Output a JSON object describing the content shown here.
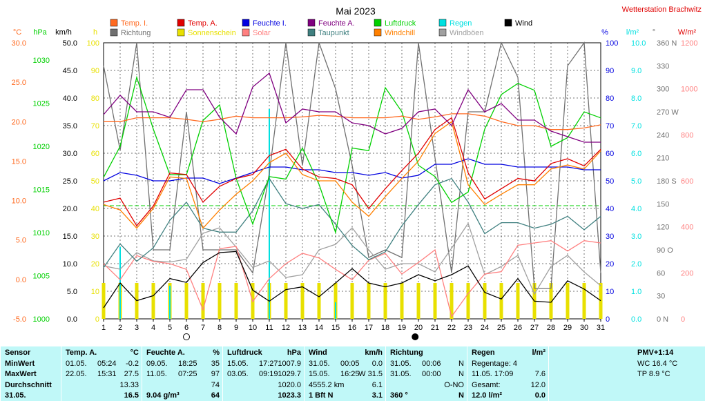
{
  "title": "Mai 2023",
  "station": "Wetterstation Brachwitz",
  "units": {
    "c": "°C",
    "hpa": "hPa",
    "kmh": "km/h",
    "h": "h",
    "pct": "%",
    "lm2": "l/m²",
    "deg": "°",
    "wm2": "W/m²"
  },
  "legend": [
    {
      "label": "Temp. I.",
      "color": "#ff6a20"
    },
    {
      "label": "Richtung",
      "color": "#707070"
    },
    {
      "label": "Temp. A.",
      "color": "#e00000"
    },
    {
      "label": "Sonnenschein",
      "color": "#e8e000"
    },
    {
      "label": "Feuchte I.",
      "color": "#0000e0"
    },
    {
      "label": "Solar",
      "color": "#ff8080"
    },
    {
      "label": "Feuchte A.",
      "color": "#800080"
    },
    {
      "label": "Taupunkt",
      "color": "#408080"
    },
    {
      "label": "Luftdruck",
      "color": "#00d000"
    },
    {
      "label": "Windchill",
      "color": "#ff8000"
    },
    {
      "label": "Regen",
      "color": "#00e0e0"
    },
    {
      "label": "Windböen",
      "color": "#a0a0a0"
    },
    {
      "label": "Wind",
      "color": "#000000"
    }
  ],
  "chart_data": {
    "type": "line",
    "title": "Mai 2023",
    "x": [
      1,
      2,
      3,
      4,
      5,
      6,
      7,
      8,
      9,
      10,
      11,
      12,
      13,
      14,
      15,
      16,
      17,
      18,
      19,
      20,
      21,
      22,
      23,
      24,
      25,
      26,
      27,
      28,
      29,
      30,
      31
    ],
    "axes": {
      "temp_c": {
        "range": [
          -5,
          30
        ],
        "ticks": [
          "30.0",
          "25.0",
          "20.0",
          "15.0",
          "10.0",
          "5.0",
          "0.0",
          "-5.0"
        ]
      },
      "pressure_hpa": {
        "range": [
          1000,
          1032
        ],
        "ticks": [
          "1030",
          "1025",
          "1020",
          "1015",
          "1010",
          "1005",
          "1000"
        ]
      },
      "wind_kmh": {
        "range": [
          0,
          50
        ],
        "ticks": [
          "50.0",
          "45.0",
          "40.0",
          "35.0",
          "30.0",
          "25.0",
          "20.0",
          "15.0",
          "10.0",
          "5.0",
          "0.0"
        ]
      },
      "sun_h": {
        "range": [
          0,
          100
        ],
        "ticks": [
          "100",
          "90",
          "80",
          "70",
          "60",
          "50",
          "40",
          "30",
          "20",
          "10",
          "0"
        ]
      },
      "humidity_pct": {
        "range": [
          0,
          100
        ],
        "ticks": [
          "100",
          "90",
          "80",
          "70",
          "60",
          "50",
          "40",
          "30",
          "20",
          "10",
          "0"
        ]
      },
      "rain_lm2": {
        "range": [
          0,
          10
        ],
        "ticks": [
          "10.0",
          "9.0",
          "8.0",
          "7.0",
          "6.0",
          "5.0",
          "4.0",
          "3.0",
          "2.0",
          "1.0",
          "0.0"
        ]
      },
      "direction_deg": {
        "range": [
          0,
          360
        ],
        "ticks": [
          "360 N",
          "330",
          "300",
          "270 W",
          "240",
          "210",
          "180 S",
          "150",
          "120",
          "90 O",
          "60",
          "30",
          "0 N"
        ]
      },
      "solar_wm2": {
        "range": [
          0,
          1200
        ],
        "ticks": [
          "1200",
          "1000",
          "800",
          "600",
          "400",
          "200",
          "0"
        ]
      }
    },
    "series": [
      {
        "name": "Temp. I.",
        "axis": "temp_c",
        "color": "#ff6a20",
        "values": [
          20.0,
          20.0,
          20.5,
          20.5,
          20.5,
          20.3,
          20.0,
          20.3,
          20.7,
          20.5,
          20.5,
          20.5,
          20.6,
          20.8,
          20.7,
          20.5,
          20.5,
          20.5,
          20.7,
          20.3,
          20.6,
          21.0,
          21.0,
          20.7,
          20.0,
          19.5,
          19.5,
          19.0,
          19.0,
          19.2,
          19.6
        ]
      },
      {
        "name": "Temp. A.",
        "axis": "temp_c",
        "color": "#e00000",
        "values": [
          9.8,
          10.3,
          6.8,
          9.3,
          13.5,
          13.3,
          9.8,
          11.8,
          12.8,
          13.3,
          15.7,
          16.5,
          14.0,
          13.0,
          12.8,
          12.0,
          9.0,
          11.5,
          13.8,
          16.0,
          19.0,
          20.5,
          13.5,
          10.2,
          11.5,
          12.8,
          12.5,
          14.7,
          15.3,
          14.4,
          16.5
        ]
      },
      {
        "name": "Windchill",
        "axis": "temp_c",
        "color": "#ff8000",
        "values": [
          9.5,
          8.8,
          6.5,
          9.0,
          13.0,
          12.8,
          6.5,
          8.8,
          10.8,
          12.5,
          14.8,
          16.0,
          13.3,
          12.5,
          12.5,
          9.8,
          8.0,
          10.5,
          12.8,
          15.0,
          18.5,
          20.0,
          12.0,
          9.5,
          10.8,
          12.0,
          12.0,
          14.0,
          14.5,
          14.0,
          16.3
        ]
      },
      {
        "name": "Taupunkt",
        "axis": "temp_c",
        "color": "#408080",
        "values": [
          1.5,
          4.5,
          2.3,
          4.0,
          7.5,
          9.8,
          6.5,
          6.0,
          6.0,
          8.7,
          12.8,
          9.6,
          9.0,
          9.5,
          7.0,
          4.3,
          2.5,
          3.5,
          6.8,
          9.5,
          12.0,
          12.8,
          9.8,
          5.8,
          7.2,
          7.2,
          6.5,
          7.0,
          8.0,
          6.3,
          8.0
        ]
      },
      {
        "name": "Feuchte I.",
        "axis": "humidity_pct",
        "color": "#0000e0",
        "values": [
          50,
          53,
          52,
          50,
          50,
          51,
          51,
          49,
          51,
          53,
          55,
          55,
          54,
          54,
          53,
          53,
          52,
          53,
          51,
          52,
          56,
          56,
          58,
          56,
          56,
          55,
          55,
          55,
          55,
          54,
          54
        ]
      },
      {
        "name": "Feuchte A.",
        "axis": "humidity_pct",
        "color": "#800080",
        "values": [
          74,
          81,
          75,
          75,
          73,
          83,
          83,
          73,
          67,
          84,
          89,
          71,
          76,
          75,
          75,
          71,
          70,
          67,
          69,
          75,
          76,
          70,
          83,
          75,
          78,
          72,
          72,
          68,
          66,
          64,
          64
        ]
      },
      {
        "name": "Luftdruck",
        "axis": "pressure_hpa",
        "color": "#00d000",
        "values": [
          1016.4,
          1020.0,
          1028.0,
          1022.0,
          1016.7,
          1016.7,
          1023.0,
          1024.8,
          1016.3,
          1011.0,
          1016.5,
          1016.2,
          1019.8,
          1015.6,
          1010.0,
          1019.8,
          1019.5,
          1026.8,
          1024.0,
          1017.8,
          1016.5,
          1013.5,
          1014.7,
          1022.0,
          1026.0,
          1027.3,
          1026.5,
          1020.0,
          1021.0,
          1024.0,
          1023.3
        ]
      },
      {
        "name": "Wind",
        "axis": "wind_kmh",
        "color": "#000000",
        "values": [
          2.0,
          6.5,
          3.3,
          4.2,
          7.3,
          6.6,
          10.2,
          12.0,
          12.2,
          5.2,
          3.2,
          5.3,
          5.8,
          4.0,
          6.5,
          9.1,
          6.5,
          5.8,
          6.5,
          8.0,
          6.9,
          8.0,
          9.6,
          4.8,
          3.6,
          7.3,
          3.2,
          3.0,
          6.9,
          5.4,
          3.3
        ]
      },
      {
        "name": "Windböen",
        "axis": "wind_kmh",
        "color": "#a0a0a0",
        "values": [
          9.6,
          9.0,
          12.0,
          10.5,
          10.3,
          10.8,
          15.5,
          16.5,
          13.0,
          9.3,
          10.5,
          7.5,
          8.0,
          12.5,
          13.5,
          16.5,
          12.5,
          9.0,
          10.0,
          10.0,
          8.5,
          12.8,
          17.3,
          8.0,
          9.5,
          11.5,
          4.5,
          9.5,
          11.5,
          8.5,
          6.0
        ]
      },
      {
        "name": "Solar",
        "axis": "solar_wm2",
        "color": "#ff8080",
        "values": [
          240,
          170,
          275,
          250,
          240,
          215,
          40,
          305,
          315,
          75,
          175,
          240,
          285,
          265,
          215,
          170,
          255,
          285,
          195,
          245,
          300,
          10,
          110,
          195,
          205,
          320,
          330,
          340,
          295,
          340,
          330
        ]
      },
      {
        "name": "Richtung",
        "axis": "direction_deg",
        "color": "#707070",
        "values": [
          330,
          220,
          360,
          90,
          90,
          270,
          90,
          90,
          90,
          60,
          190,
          360,
          200,
          360,
          300,
          200,
          80,
          90,
          80,
          360,
          210,
          60,
          270,
          270,
          360,
          315,
          40,
          40,
          330,
          360,
          60
        ]
      },
      {
        "name": "Sonnenschein",
        "axis": "sun_h",
        "color": "#e8e000",
        "type": "bar",
        "values": [
          13,
          13,
          13,
          13,
          13,
          13,
          13,
          13,
          13,
          13,
          13,
          13,
          13,
          13,
          13,
          13,
          13,
          13,
          13,
          13,
          13,
          13,
          13,
          13,
          13,
          13,
          13,
          13,
          13,
          13,
          13
        ]
      },
      {
        "name": "Regen",
        "axis": "rain_lm2",
        "color": "#00e0e0",
        "type": "bar",
        "values": [
          0,
          2.6,
          0,
          0,
          1.2,
          0,
          0,
          0,
          0,
          0,
          7.6,
          0,
          0,
          0,
          0.6,
          0,
          0,
          0,
          0,
          0,
          0,
          0,
          0,
          0,
          0,
          0,
          0,
          0,
          0,
          0,
          0
        ]
      }
    ],
    "reference_lines": [
      {
        "axis": "humidity_pct",
        "value": 41,
        "color": "#00d000"
      }
    ],
    "moon_phases": [
      {
        "x": 6,
        "phase": "full"
      },
      {
        "x": 19.8,
        "phase": "new"
      }
    ],
    "grid": true
  },
  "table": {
    "sensor": {
      "header": "Sensor",
      "rows": [
        "MinWert",
        "MaxWert",
        "Durchschnitt",
        "31.05."
      ]
    },
    "temp": {
      "header": "Temp. A.",
      "unit": "°C",
      "rows": [
        [
          "01.05.",
          "05:24",
          "-0.2"
        ],
        [
          "22.05.",
          "15:31",
          "27.5"
        ],
        [
          "",
          "",
          "13.33"
        ],
        [
          "",
          "",
          "16.5"
        ]
      ]
    },
    "feuchte": {
      "header": "Feuchte A.",
      "unit": "%",
      "rows": [
        [
          "09.05.",
          "18:25",
          "35"
        ],
        [
          "11.05.",
          "07:25",
          "97"
        ],
        [
          "",
          "",
          "74"
        ],
        [
          "9.04 g/m³",
          "",
          "64"
        ]
      ]
    },
    "druck": {
      "header": "Luftdruck",
      "unit": "hPa",
      "rows": [
        [
          "15.05.",
          "17:27",
          "1007.9"
        ],
        [
          "03.05.",
          "09:19",
          "1029.7"
        ],
        [
          "",
          "",
          "1020.0"
        ],
        [
          "",
          "",
          "1023.3"
        ]
      ]
    },
    "wind": {
      "header": "Wind",
      "unit": "km/h",
      "rows": [
        [
          "31.05.",
          "00:05",
          "0.0"
        ],
        [
          "15.05.",
          "16:25",
          "W 31.5"
        ],
        [
          "4555.2 km",
          "",
          "6.1"
        ],
        [
          "1 Bft N",
          "",
          "3.1"
        ]
      ]
    },
    "richtung": {
      "header": "Richtung",
      "rows": [
        [
          "31.05.",
          "00:06",
          "N"
        ],
        [
          "31.05.",
          "00:00",
          "N"
        ],
        [
          "",
          "",
          "O-NO"
        ],
        [
          "360 °",
          "",
          "N"
        ]
      ]
    },
    "regen": {
      "header": "Regen",
      "unit": "l/m²",
      "rows": [
        [
          "Regentage: 4",
          ""
        ],
        [
          "11.05.  17:09",
          "7.6"
        ],
        [
          "Gesamt:",
          "12.0"
        ],
        [
          "12.0 l/m²",
          "0.0"
        ]
      ]
    },
    "pmv": {
      "rows": [
        "PMV+1:14",
        "WC 16.4 °C",
        "TP 8.9 °C"
      ]
    }
  }
}
